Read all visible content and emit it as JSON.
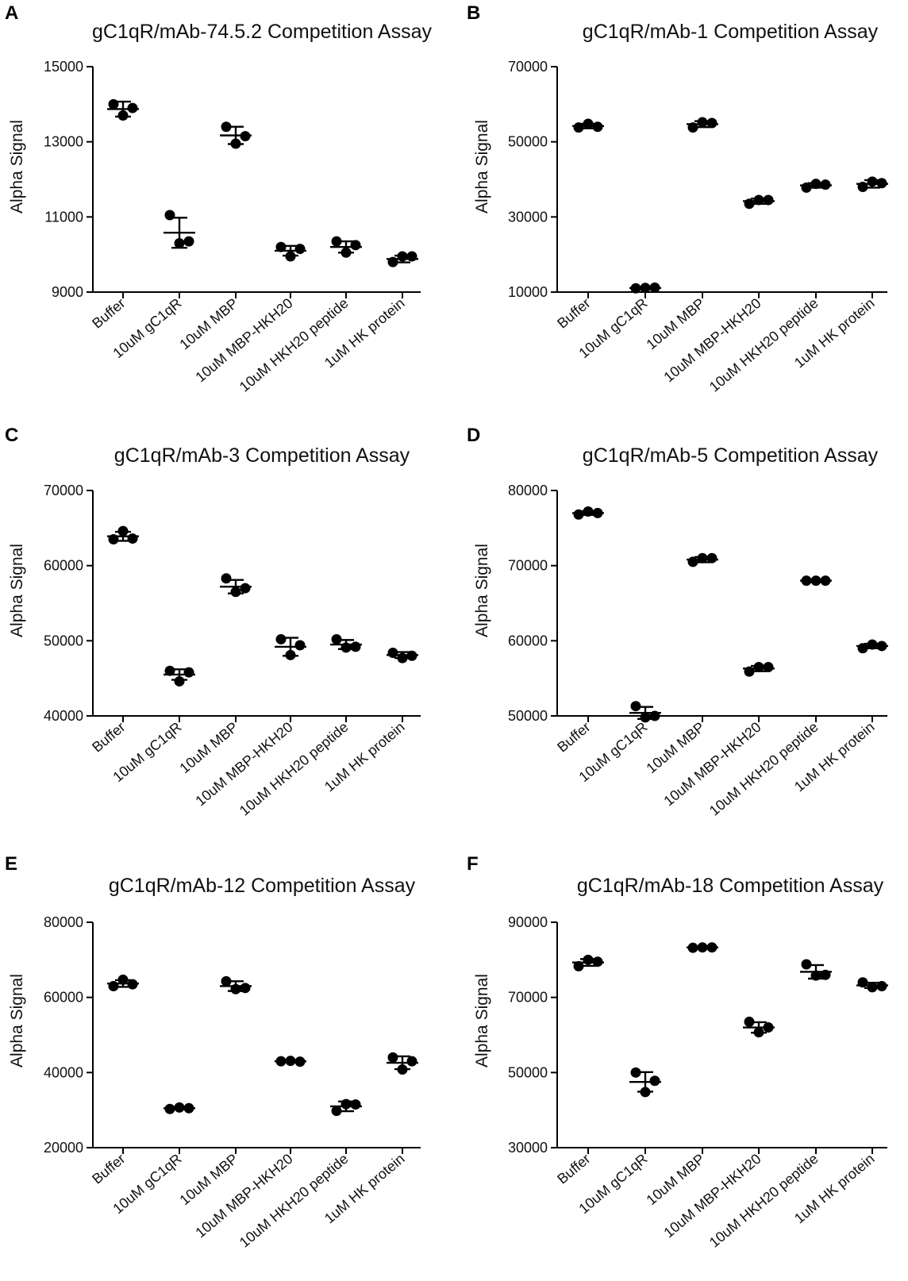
{
  "figure": {
    "panel_count": 6
  },
  "chart_data": [
    {
      "panel": "A",
      "type": "scatter",
      "title": "gC1qR/mAb-74.5.2 Competition Assay",
      "xlabel": "",
      "ylabel": "Alpha Signal",
      "ylim": [
        9000,
        15000
      ],
      "yticks": [
        9000,
        11000,
        13000,
        15000
      ],
      "categories": [
        "Buffer",
        "10uM gC1qR",
        "10uM MBP",
        "10uM MBP-HKH20",
        "10uM HKH20 peptide",
        "1uM HK protein"
      ],
      "points": [
        [
          14000,
          13700,
          13900
        ],
        [
          11050,
          10300,
          10350
        ],
        [
          13400,
          12950,
          13150
        ],
        [
          10200,
          9950,
          10150
        ],
        [
          10350,
          10050,
          10250
        ],
        [
          9800,
          9950,
          9950
        ]
      ],
      "mean": [
        13870,
        10580,
        13170,
        10100,
        10200,
        9880
      ],
      "sd": [
        200,
        400,
        230,
        130,
        150,
        90
      ]
    },
    {
      "panel": "B",
      "type": "scatter",
      "title": "gC1qR/mAb-1 Competition Assay",
      "xlabel": "",
      "ylabel": "Alpha Signal",
      "ylim": [
        10000,
        70000
      ],
      "yticks": [
        10000,
        30000,
        50000,
        70000
      ],
      "categories": [
        "Buffer",
        "10uM gC1qR",
        "10uM MBP",
        "10uM MBP-HKH20",
        "10uM HKH20 peptide",
        "1uM HK protein"
      ],
      "points": [
        [
          53800,
          54800,
          54000
        ],
        [
          11000,
          11100,
          11200
        ],
        [
          53800,
          55200,
          55000
        ],
        [
          33500,
          34500,
          34500
        ],
        [
          37800,
          38800,
          38600
        ],
        [
          38000,
          39400,
          39000
        ]
      ],
      "mean": [
        54200,
        11100,
        54700,
        34200,
        38400,
        38800
      ],
      "sd": [
        600,
        200,
        800,
        700,
        600,
        1000
      ]
    },
    {
      "panel": "C",
      "type": "scatter",
      "title": "gC1qR/mAb-3 Competition Assay",
      "xlabel": "",
      "ylabel": "Alpha Signal",
      "ylim": [
        40000,
        70000
      ],
      "yticks": [
        40000,
        50000,
        60000,
        70000
      ],
      "categories": [
        "Buffer",
        "10uM gC1qR",
        "10uM MBP",
        "10uM MBP-HKH20",
        "10uM HKH20 peptide",
        "1uM HK protein"
      ],
      "points": [
        [
          63500,
          64600,
          63600
        ],
        [
          46000,
          44600,
          45800
        ],
        [
          58300,
          56500,
          57000
        ],
        [
          50200,
          48100,
          49400
        ],
        [
          50200,
          49100,
          49200
        ],
        [
          48400,
          47700,
          48000
        ]
      ],
      "mean": [
        63900,
        45500,
        57200,
        49200,
        49500,
        48100
      ],
      "sd": [
        600,
        700,
        900,
        1200,
        600,
        400
      ]
    },
    {
      "panel": "D",
      "type": "scatter",
      "title": "gC1qR/mAb-5 Competition Assay",
      "xlabel": "",
      "ylabel": "Alpha Signal",
      "ylim": [
        50000,
        80000
      ],
      "yticks": [
        50000,
        60000,
        70000,
        80000
      ],
      "categories": [
        "Buffer",
        "10uM gC1qR",
        "10uM MBP",
        "10uM MBP-HKH20",
        "10uM HKH20 peptide",
        "1uM HK protein"
      ],
      "points": [
        [
          76800,
          77200,
          77000
        ],
        [
          51300,
          49800,
          50000
        ],
        [
          70500,
          71000,
          71000
        ],
        [
          55900,
          56500,
          56500
        ],
        [
          68000,
          68000,
          68000
        ],
        [
          59000,
          59500,
          59300
        ]
      ],
      "mean": [
        77000,
        50400,
        70800,
        56300,
        68000,
        59300
      ],
      "sd": [
        250,
        800,
        350,
        350,
        100,
        300
      ]
    },
    {
      "panel": "E",
      "type": "scatter",
      "title": "gC1qR/mAb-12 Competition Assay",
      "xlabel": "",
      "ylabel": "Alpha Signal",
      "ylim": [
        20000,
        80000
      ],
      "yticks": [
        20000,
        40000,
        60000,
        80000
      ],
      "categories": [
        "Buffer",
        "10uM gC1qR",
        "10uM MBP",
        "10uM MBP-HKH20",
        "10uM HKH20 peptide",
        "1uM HK protein"
      ],
      "points": [
        [
          63000,
          64700,
          63500
        ],
        [
          30300,
          30700,
          30500
        ],
        [
          64300,
          62200,
          62500
        ],
        [
          43000,
          43100,
          42900
        ],
        [
          29800,
          31600,
          31500
        ],
        [
          44000,
          40800,
          43000
        ]
      ],
      "mean": [
        63700,
        30500,
        63000,
        43000,
        31000,
        42600
      ],
      "sd": [
        900,
        250,
        1300,
        150,
        1300,
        1700
      ]
    },
    {
      "panel": "F",
      "type": "scatter",
      "title": "gC1qR/mAb-18 Competition Assay",
      "xlabel": "",
      "ylabel": "Alpha Signal",
      "ylim": [
        30000,
        90000
      ],
      "yticks": [
        30000,
        50000,
        70000,
        90000
      ],
      "categories": [
        "Buffer",
        "10uM gC1qR",
        "10uM MBP",
        "10uM MBP-HKH20",
        "10uM HKH20 peptide",
        "1uM HK protein"
      ],
      "points": [
        [
          78300,
          80000,
          79500
        ],
        [
          50000,
          44800,
          47800
        ],
        [
          83200,
          83300,
          83300
        ],
        [
          63500,
          60700,
          62000
        ],
        [
          78800,
          75800,
          76000
        ],
        [
          74000,
          72700,
          73000
        ]
      ],
      "mean": [
        79300,
        47500,
        83300,
        62000,
        76800,
        73200
      ],
      "sd": [
        900,
        2600,
        150,
        1400,
        1800,
        700
      ]
    }
  ]
}
